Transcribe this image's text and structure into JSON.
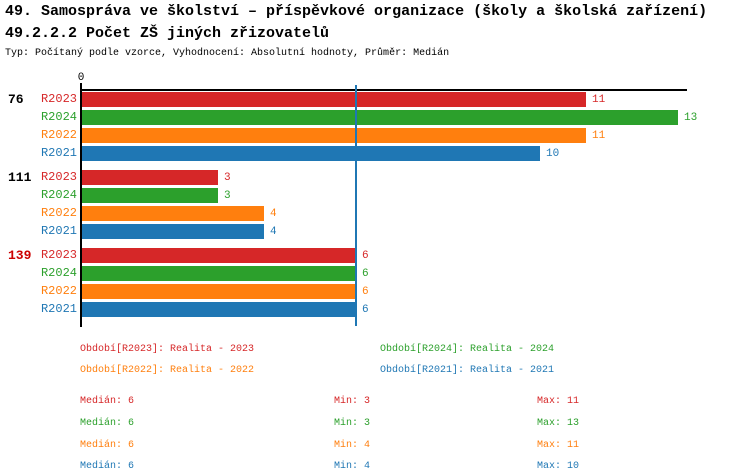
{
  "header": {
    "title": "49. Samospráva ve školství – příspěvkové organizace (školy a školská zařízení)",
    "subtitle": "49.2.2.2 Počet ZŠ jiných zřizovatelů",
    "meta": "Typ: Počítaný podle vzorce, Vyhodnocení: Absolutní hodnoty, Průměr: Medián"
  },
  "colors": {
    "r2023": "#d62728",
    "r2024": "#2ca02c",
    "r2022": "#ff7f0e",
    "r2021": "#1f77b4",
    "axis": "#000000",
    "highlight_category": "#cc0000"
  },
  "chart_data": {
    "type": "bar",
    "orientation": "horizontal",
    "title": "49.2.2.2 Počet ZŠ jiných zřizovatelů",
    "categories": [
      "76",
      "111",
      "139"
    ],
    "category_colors": [
      "#000000",
      "#000000",
      "#cc0000"
    ],
    "series": [
      {
        "name": "R2023",
        "color": "#d62728",
        "values": [
          11,
          3,
          6
        ]
      },
      {
        "name": "R2024",
        "color": "#2ca02c",
        "values": [
          13,
          3,
          6
        ]
      },
      {
        "name": "R2022",
        "color": "#ff7f0e",
        "values": [
          11,
          4,
          6
        ]
      },
      {
        "name": "R2021",
        "color": "#1f77b4",
        "values": [
          10,
          4,
          6
        ]
      }
    ],
    "x_axis": {
      "ticks": [
        {
          "value": 0,
          "label": "0"
        }
      ],
      "range": [
        0,
        13.2
      ],
      "grid": false
    },
    "median_line": {
      "value": 6,
      "color": "#1f77b4"
    },
    "legend_position": "bottom"
  },
  "legend": {
    "items": [
      {
        "text": "Období[R2023]: Realita - 2023",
        "color": "#d62728"
      },
      {
        "text": "Období[R2024]: Realita - 2024",
        "color": "#2ca02c"
      },
      {
        "text": "Období[R2022]: Realita - 2022",
        "color": "#ff7f0e"
      },
      {
        "text": "Období[R2021]: Realita - 2021",
        "color": "#1f77b4"
      }
    ]
  },
  "stats": {
    "rows": [
      {
        "median": "Medián: 6",
        "min": "Min: 3",
        "max": "Max: 11",
        "color": "#d62728"
      },
      {
        "median": "Medián: 6",
        "min": "Min: 3",
        "max": "Max: 13",
        "color": "#2ca02c"
      },
      {
        "median": "Medián: 6",
        "min": "Min: 4",
        "max": "Max: 11",
        "color": "#ff7f0e"
      },
      {
        "median": "Medián: 6",
        "min": "Min: 4",
        "max": "Max: 10",
        "color": "#1f77b4"
      }
    ]
  }
}
